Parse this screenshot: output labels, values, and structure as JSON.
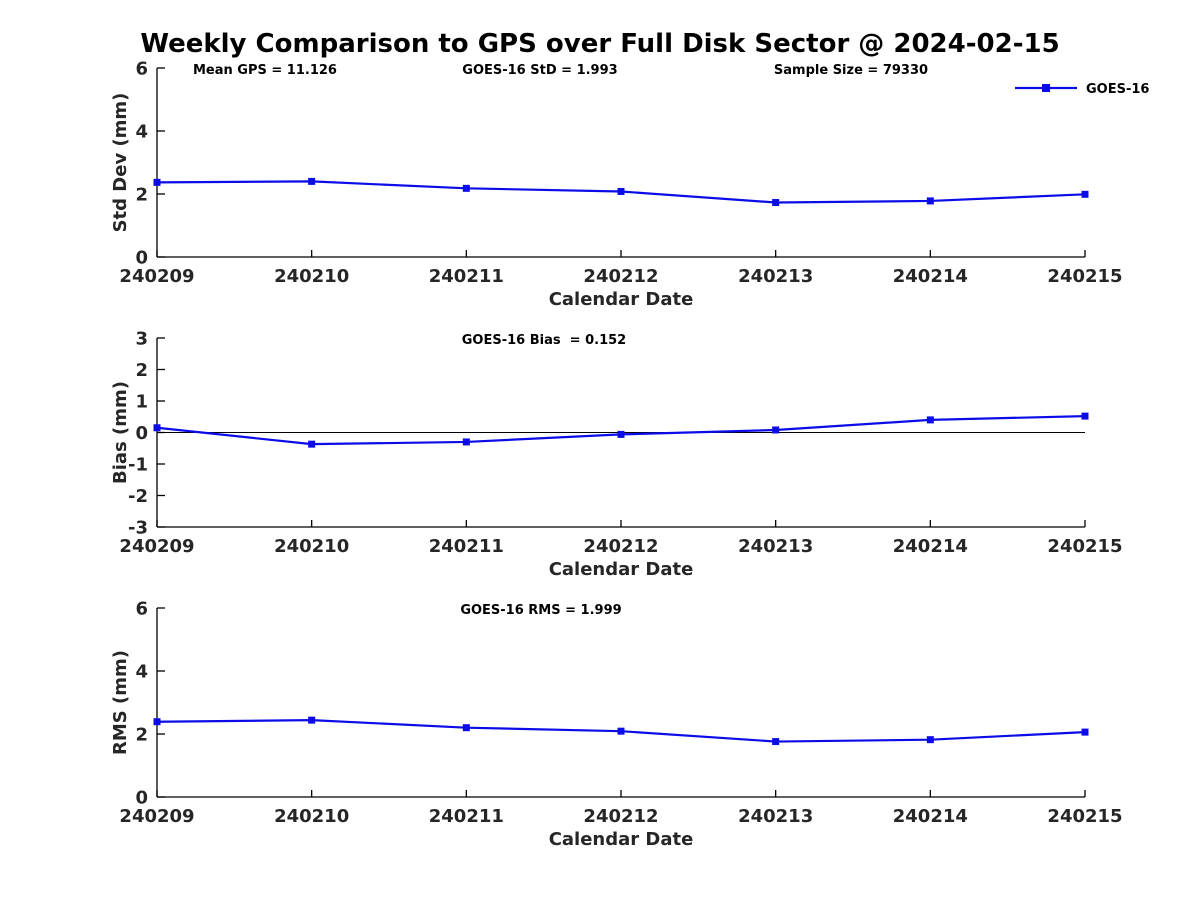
{
  "main": {
    "title": "Weekly Comparison to GPS over Full Disk Sector @ 2024-02-15"
  },
  "legend": {
    "label": "GOES-16"
  },
  "colors": {
    "series": "#0C0CE8",
    "axis": "#000000",
    "tick_text": "#262626",
    "annotation_text": "#000000"
  },
  "chart_data": [
    {
      "type": "line",
      "categories": [
        "240209",
        "240210",
        "240211",
        "240212",
        "240213",
        "240214",
        "240215"
      ],
      "series": [
        {
          "name": "GOES-16",
          "values": [
            2.37,
            2.4,
            2.18,
            2.08,
            1.73,
            1.78,
            1.99
          ]
        }
      ],
      "xlabel": "Calendar Date",
      "ylabel": "Std Dev (mm)",
      "ylim": [
        0,
        6
      ],
      "yticks": [
        0,
        2,
        4,
        6
      ],
      "grid": false,
      "zero_line": false,
      "legend_position": "top-right",
      "annotations": [
        {
          "text": "Mean GPS = 11.126"
        },
        {
          "text": "GOES-16 StD = 1.993"
        },
        {
          "text": "Sample Size = 79330"
        }
      ]
    },
    {
      "type": "line",
      "categories": [
        "240209",
        "240210",
        "240211",
        "240212",
        "240213",
        "240214",
        "240215"
      ],
      "series": [
        {
          "name": "GOES-16",
          "values": [
            0.15,
            -0.37,
            -0.3,
            -0.06,
            0.08,
            0.4,
            0.52
          ]
        }
      ],
      "xlabel": "Calendar Date",
      "ylabel": "Bias (mm)",
      "ylim": [
        -3,
        3
      ],
      "yticks": [
        -3,
        -2,
        -1,
        0,
        1,
        2,
        3
      ],
      "grid": false,
      "zero_line": true,
      "legend_position": "none",
      "annotations": [
        {
          "text": "GOES-16 Bias  = 0.152"
        }
      ]
    },
    {
      "type": "line",
      "categories": [
        "240209",
        "240210",
        "240211",
        "240212",
        "240213",
        "240214",
        "240215"
      ],
      "series": [
        {
          "name": "GOES-16",
          "values": [
            2.39,
            2.44,
            2.2,
            2.09,
            1.76,
            1.82,
            2.06
          ]
        }
      ],
      "xlabel": "Calendar Date",
      "ylabel": "RMS (mm)",
      "ylim": [
        0,
        6
      ],
      "yticks": [
        0,
        2,
        4,
        6
      ],
      "grid": false,
      "zero_line": false,
      "legend_position": "none",
      "annotations": [
        {
          "text": "GOES-16 RMS = 1.999"
        }
      ]
    }
  ]
}
